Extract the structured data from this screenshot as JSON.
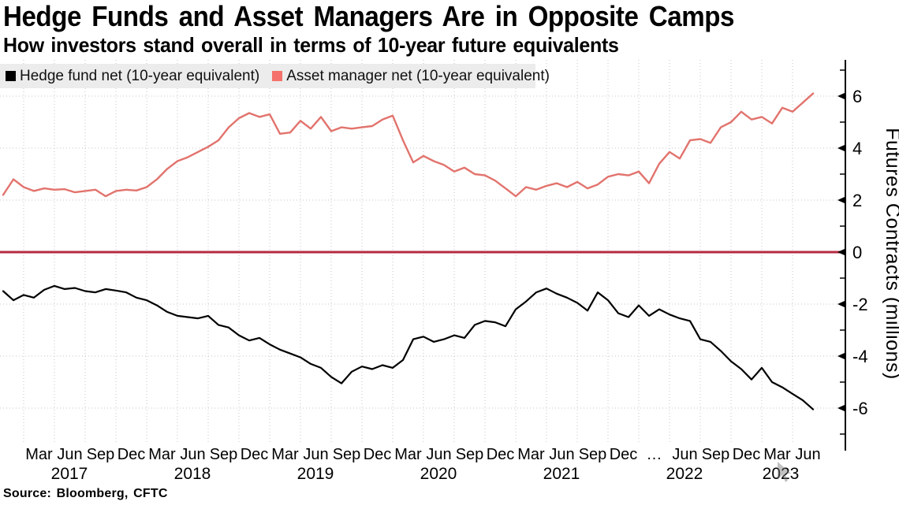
{
  "title": "Hedge Funds and Asset Managers Are in Opposite Camps",
  "subtitle": "How investors stand overall in terms of 10-year future equivalents",
  "legend": {
    "items": [
      {
        "label": "Hedge fund net (10-year equivalent)",
        "color": "#000000"
      },
      {
        "label": "Asset manager net (10-year equivalent)",
        "color": "#f4726b"
      }
    ]
  },
  "source": "Source: Bloomberg, CFTC",
  "colors": {
    "hedge_line": "#000000",
    "asset_line": "#e2736d",
    "zero_line": "#b62a40",
    "grid": "#c6c6c6",
    "legend_bg": "#ececec",
    "axis": "#000000",
    "text": "#000000"
  },
  "chart_data": {
    "type": "line",
    "title": "Hedge Funds and Asset Managers Are in Opposite Camps",
    "subtitle": "How investors stand overall in terms of 10-year future equivalents",
    "ylabel": "Futures Contracts (millions)",
    "xlabel": "",
    "ylim": [
      -7.5,
      7.5
    ],
    "grid": true,
    "legend_position": "top-left",
    "zero_line": 0,
    "y_ticks": [
      6,
      4,
      2,
      0,
      -2,
      -4,
      -6
    ],
    "y_minor_ticks": [
      7,
      5,
      3,
      1,
      -1,
      -3,
      -5,
      -7
    ],
    "x_quarter_labels": [
      "Mar",
      "Jun",
      "Sep",
      "Dec",
      "Mar",
      "Jun",
      "Sep",
      "Dec",
      "Mar",
      "Jun",
      "Sep",
      "Dec",
      "Mar",
      "Jun",
      "Sep",
      "Dec",
      "Mar",
      "Jun",
      "Sep",
      "Dec",
      "…",
      "Jun",
      "Sep",
      "Dec",
      "Mar",
      "Jun"
    ],
    "x_year_labels": [
      "2017",
      "2018",
      "2019",
      "2020",
      "2021",
      "2022",
      "2023"
    ],
    "months": [
      "2017-01",
      "2017-02",
      "2017-03",
      "2017-04",
      "2017-05",
      "2017-06",
      "2017-07",
      "2017-08",
      "2017-09",
      "2017-10",
      "2017-11",
      "2017-12",
      "2018-01",
      "2018-02",
      "2018-03",
      "2018-04",
      "2018-05",
      "2018-06",
      "2018-07",
      "2018-08",
      "2018-09",
      "2018-10",
      "2018-11",
      "2018-12",
      "2019-01",
      "2019-02",
      "2019-03",
      "2019-04",
      "2019-05",
      "2019-06",
      "2019-07",
      "2019-08",
      "2019-09",
      "2019-10",
      "2019-11",
      "2019-12",
      "2020-01",
      "2020-02",
      "2020-03",
      "2020-04",
      "2020-05",
      "2020-06",
      "2020-07",
      "2020-08",
      "2020-09",
      "2020-10",
      "2020-11",
      "2020-12",
      "2021-01",
      "2021-02",
      "2021-03",
      "2021-04",
      "2021-05",
      "2021-06",
      "2021-07",
      "2021-08",
      "2021-09",
      "2021-10",
      "2021-11",
      "2021-12",
      "2022-01",
      "2022-02",
      "2022-03",
      "2022-04",
      "2022-05",
      "2022-06",
      "2022-07",
      "2022-08",
      "2022-09",
      "2022-10",
      "2022-11",
      "2022-12",
      "2023-01",
      "2023-02",
      "2023-03",
      "2023-04",
      "2023-05",
      "2023-06",
      "2023-07",
      "2023-08"
    ],
    "series": [
      {
        "name": "Hedge fund net (10-year equivalent)",
        "color": "#000000",
        "values": [
          -1.5,
          -1.85,
          -1.65,
          -1.75,
          -1.45,
          -1.3,
          -1.42,
          -1.38,
          -1.5,
          -1.55,
          -1.42,
          -1.48,
          -1.55,
          -1.75,
          -1.85,
          -2.05,
          -2.3,
          -2.45,
          -2.5,
          -2.55,
          -2.45,
          -2.8,
          -2.9,
          -3.2,
          -3.4,
          -3.3,
          -3.55,
          -3.75,
          -3.9,
          -4.05,
          -4.3,
          -4.45,
          -4.8,
          -5.05,
          -4.6,
          -4.4,
          -4.5,
          -4.35,
          -4.45,
          -4.15,
          -3.35,
          -3.25,
          -3.45,
          -3.35,
          -3.2,
          -3.3,
          -2.8,
          -2.65,
          -2.7,
          -2.85,
          -2.2,
          -1.9,
          -1.55,
          -1.4,
          -1.6,
          -1.75,
          -1.95,
          -2.25,
          -1.55,
          -1.85,
          -2.35,
          -2.5,
          -2.05,
          -2.45,
          -2.2,
          -2.4,
          -2.55,
          -2.65,
          -3.35,
          -3.45,
          -3.8,
          -4.2,
          -4.5,
          -4.9,
          -4.45,
          -5.0,
          -5.2,
          -5.45,
          -5.7,
          -6.05
        ]
      },
      {
        "name": "Asset manager net (10-year equivalent)",
        "color": "#e2736d",
        "values": [
          2.2,
          2.8,
          2.5,
          2.35,
          2.45,
          2.4,
          2.42,
          2.3,
          2.35,
          2.4,
          2.15,
          2.35,
          2.4,
          2.37,
          2.5,
          2.8,
          3.2,
          3.5,
          3.65,
          3.85,
          4.05,
          4.3,
          4.8,
          5.15,
          5.35,
          5.2,
          5.3,
          4.55,
          4.6,
          5.05,
          4.75,
          5.2,
          4.65,
          4.8,
          4.75,
          4.8,
          4.85,
          5.1,
          5.25,
          4.3,
          3.45,
          3.7,
          3.5,
          3.35,
          3.1,
          3.25,
          3.0,
          2.95,
          2.75,
          2.45,
          2.15,
          2.5,
          2.4,
          2.55,
          2.65,
          2.5,
          2.7,
          2.45,
          2.6,
          2.9,
          3.0,
          2.95,
          3.1,
          2.65,
          3.4,
          3.85,
          3.6,
          4.3,
          4.35,
          4.2,
          4.8,
          5.0,
          5.4,
          5.1,
          5.2,
          4.95,
          5.55,
          5.4,
          5.75,
          6.1
        ]
      }
    ],
    "layout": {
      "year_label_x": [
        88,
        244,
        400,
        556,
        712,
        868,
        990
      ]
    }
  },
  "cursor": {
    "visible": true
  }
}
